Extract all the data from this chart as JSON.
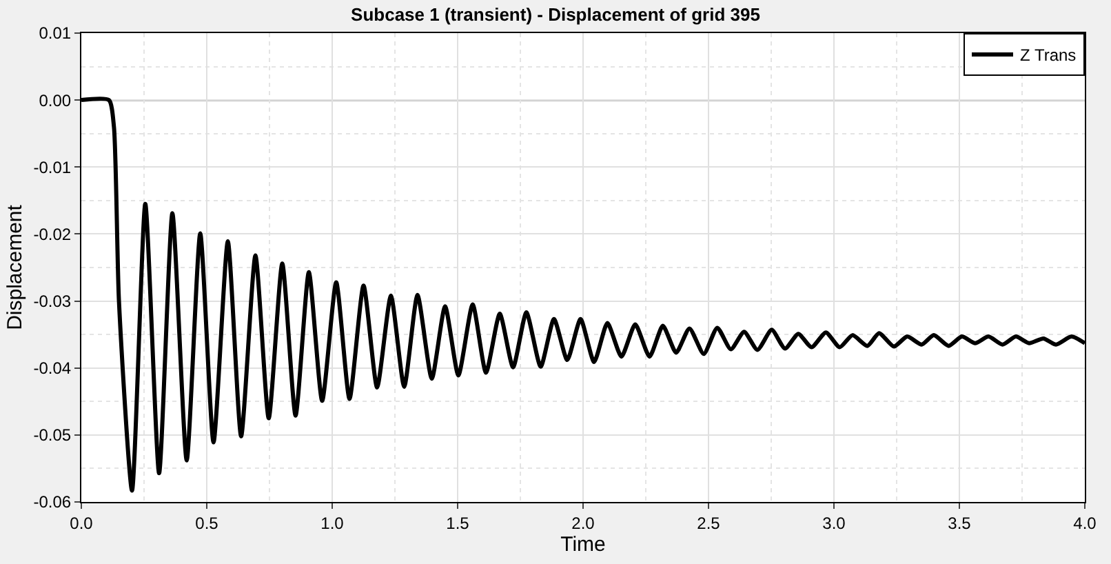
{
  "chart_data": {
    "type": "line",
    "title": "Subcase 1 (transient) - Displacement of grid 395",
    "xlabel": "Time",
    "ylabel": "Displacement",
    "xlim": [
      0,
      4
    ],
    "ylim": [
      -0.06,
      0.01
    ],
    "xticks": [
      {
        "value": 0,
        "label": "0.0"
      },
      {
        "value": 0.5,
        "label": "0.5"
      },
      {
        "value": 1,
        "label": "1.0"
      },
      {
        "value": 1.5,
        "label": "1.5"
      },
      {
        "value": 2,
        "label": "2.0"
      },
      {
        "value": 2.5,
        "label": "2.5"
      },
      {
        "value": 3,
        "label": "3.0"
      },
      {
        "value": 3.5,
        "label": "3.5"
      },
      {
        "value": 4,
        "label": "4.0"
      }
    ],
    "yticks": [
      {
        "value": -0.06,
        "label": "-0.06"
      },
      {
        "value": -0.05,
        "label": "-0.05"
      },
      {
        "value": -0.04,
        "label": "-0.04"
      },
      {
        "value": -0.03,
        "label": "-0.03"
      },
      {
        "value": -0.02,
        "label": "-0.02"
      },
      {
        "value": -0.01,
        "label": "-0.01"
      },
      {
        "value": 0,
        "label": "0.00"
      },
      {
        "value": 0.01,
        "label": "0.01"
      }
    ],
    "grid": true,
    "legend": "top right",
    "marker": "none",
    "line_style": "solid",
    "ref_lines": [
      {
        "axis": "y",
        "value": 0,
        "label": null,
        "color": "#000000"
      }
    ],
    "series": [
      {
        "name": "Z Trans",
        "color": "#000000",
        "x": [
          0,
          0.11,
          0.13,
          0.15,
          0.202,
          0.255,
          0.31,
          0.363,
          0.42,
          0.474,
          0.527,
          0.584,
          0.637,
          0.694,
          0.747,
          0.801,
          0.854,
          0.907,
          0.96,
          1.016,
          1.069,
          1.125,
          1.179,
          1.234,
          1.287,
          1.34,
          1.397,
          1.45,
          1.503,
          1.56,
          1.613,
          1.668,
          1.721,
          1.774,
          1.831,
          1.884,
          1.937,
          1.99,
          2.044,
          2.097,
          2.153,
          2.208,
          2.265,
          2.318,
          2.371,
          2.424,
          2.481,
          2.535,
          2.589,
          2.642,
          2.695,
          2.752,
          2.805,
          2.858,
          2.911,
          2.968,
          3.023,
          3.074,
          3.133,
          3.18,
          3.239,
          3.292,
          3.35,
          3.398,
          3.457,
          3.51,
          3.563,
          3.616,
          3.672,
          3.725,
          3.778,
          3.835,
          3.885,
          3.947,
          4.0
        ],
        "values": [
          0,
          0,
          -0.004,
          -0.03,
          -0.0583,
          -0.0155,
          -0.0557,
          -0.0169,
          -0.0538,
          -0.0199,
          -0.0511,
          -0.0211,
          -0.0502,
          -0.0232,
          -0.0475,
          -0.0244,
          -0.0471,
          -0.0257,
          -0.0449,
          -0.0272,
          -0.0446,
          -0.0277,
          -0.0429,
          -0.0292,
          -0.0428,
          -0.0291,
          -0.0416,
          -0.0308,
          -0.0411,
          -0.0305,
          -0.0407,
          -0.0319,
          -0.0399,
          -0.0317,
          -0.0398,
          -0.0327,
          -0.0388,
          -0.0327,
          -0.0391,
          -0.0333,
          -0.0383,
          -0.0335,
          -0.0383,
          -0.0337,
          -0.0377,
          -0.0341,
          -0.0379,
          -0.034,
          -0.0372,
          -0.0346,
          -0.0373,
          -0.0343,
          -0.0371,
          -0.0349,
          -0.0369,
          -0.0347,
          -0.0369,
          -0.0351,
          -0.0367,
          -0.0348,
          -0.0368,
          -0.0353,
          -0.0365,
          -0.0351,
          -0.0367,
          -0.0353,
          -0.0363,
          -0.0353,
          -0.0365,
          -0.0353,
          -0.0363,
          -0.0356,
          -0.0365,
          -0.0353,
          -0.0363
        ]
      }
    ]
  }
}
